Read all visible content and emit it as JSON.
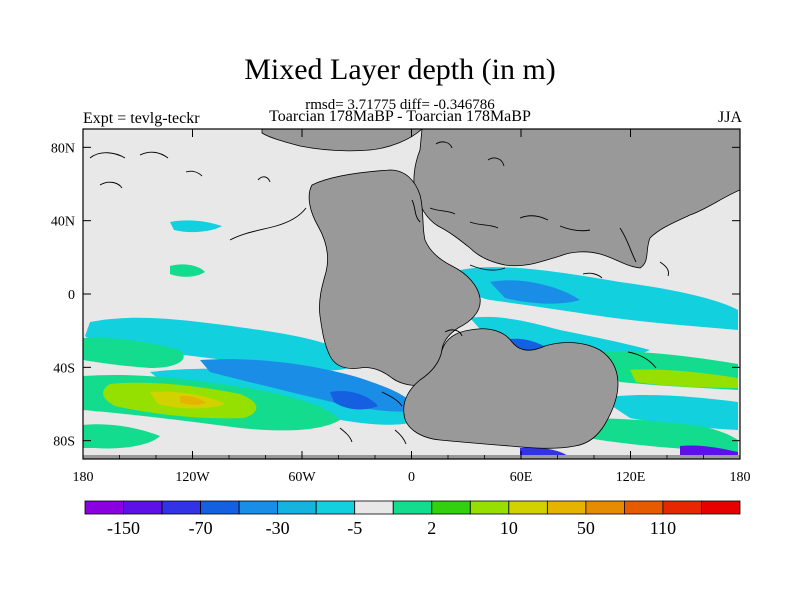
{
  "title": "Mixed Layer depth (in m)",
  "stats_line": "rmsd= 3.71775 diff= -0.346786",
  "subtitle_center": "Toarcian 178MaBP - Toarcian 178MaBP",
  "subtitle_left": "Expt = tevlg-teckr",
  "subtitle_right": "JJA",
  "x_ticks": [
    "180",
    "120W",
    "60W",
    "0",
    "60E",
    "120E",
    "180"
  ],
  "y_ticks": [
    "80N",
    "40N",
    "0",
    "40S",
    "80S"
  ],
  "colorbar": {
    "colors": [
      "#8a00e0",
      "#5d10e8",
      "#3232e6",
      "#1460e0",
      "#1a8ee6",
      "#14b4de",
      "#12d0de",
      "#e8e8e8",
      "#14dc8e",
      "#32d00e",
      "#96e000",
      "#d2d200",
      "#e6b400",
      "#e68c00",
      "#e65a00",
      "#e62800",
      "#e60000"
    ],
    "labels": [
      "-150",
      "-70",
      "-30",
      "-5",
      "2",
      "10",
      "50",
      "110"
    ]
  },
  "colors": {
    "ocean_no_change": "#e8e8e8",
    "land": "#999999"
  }
}
